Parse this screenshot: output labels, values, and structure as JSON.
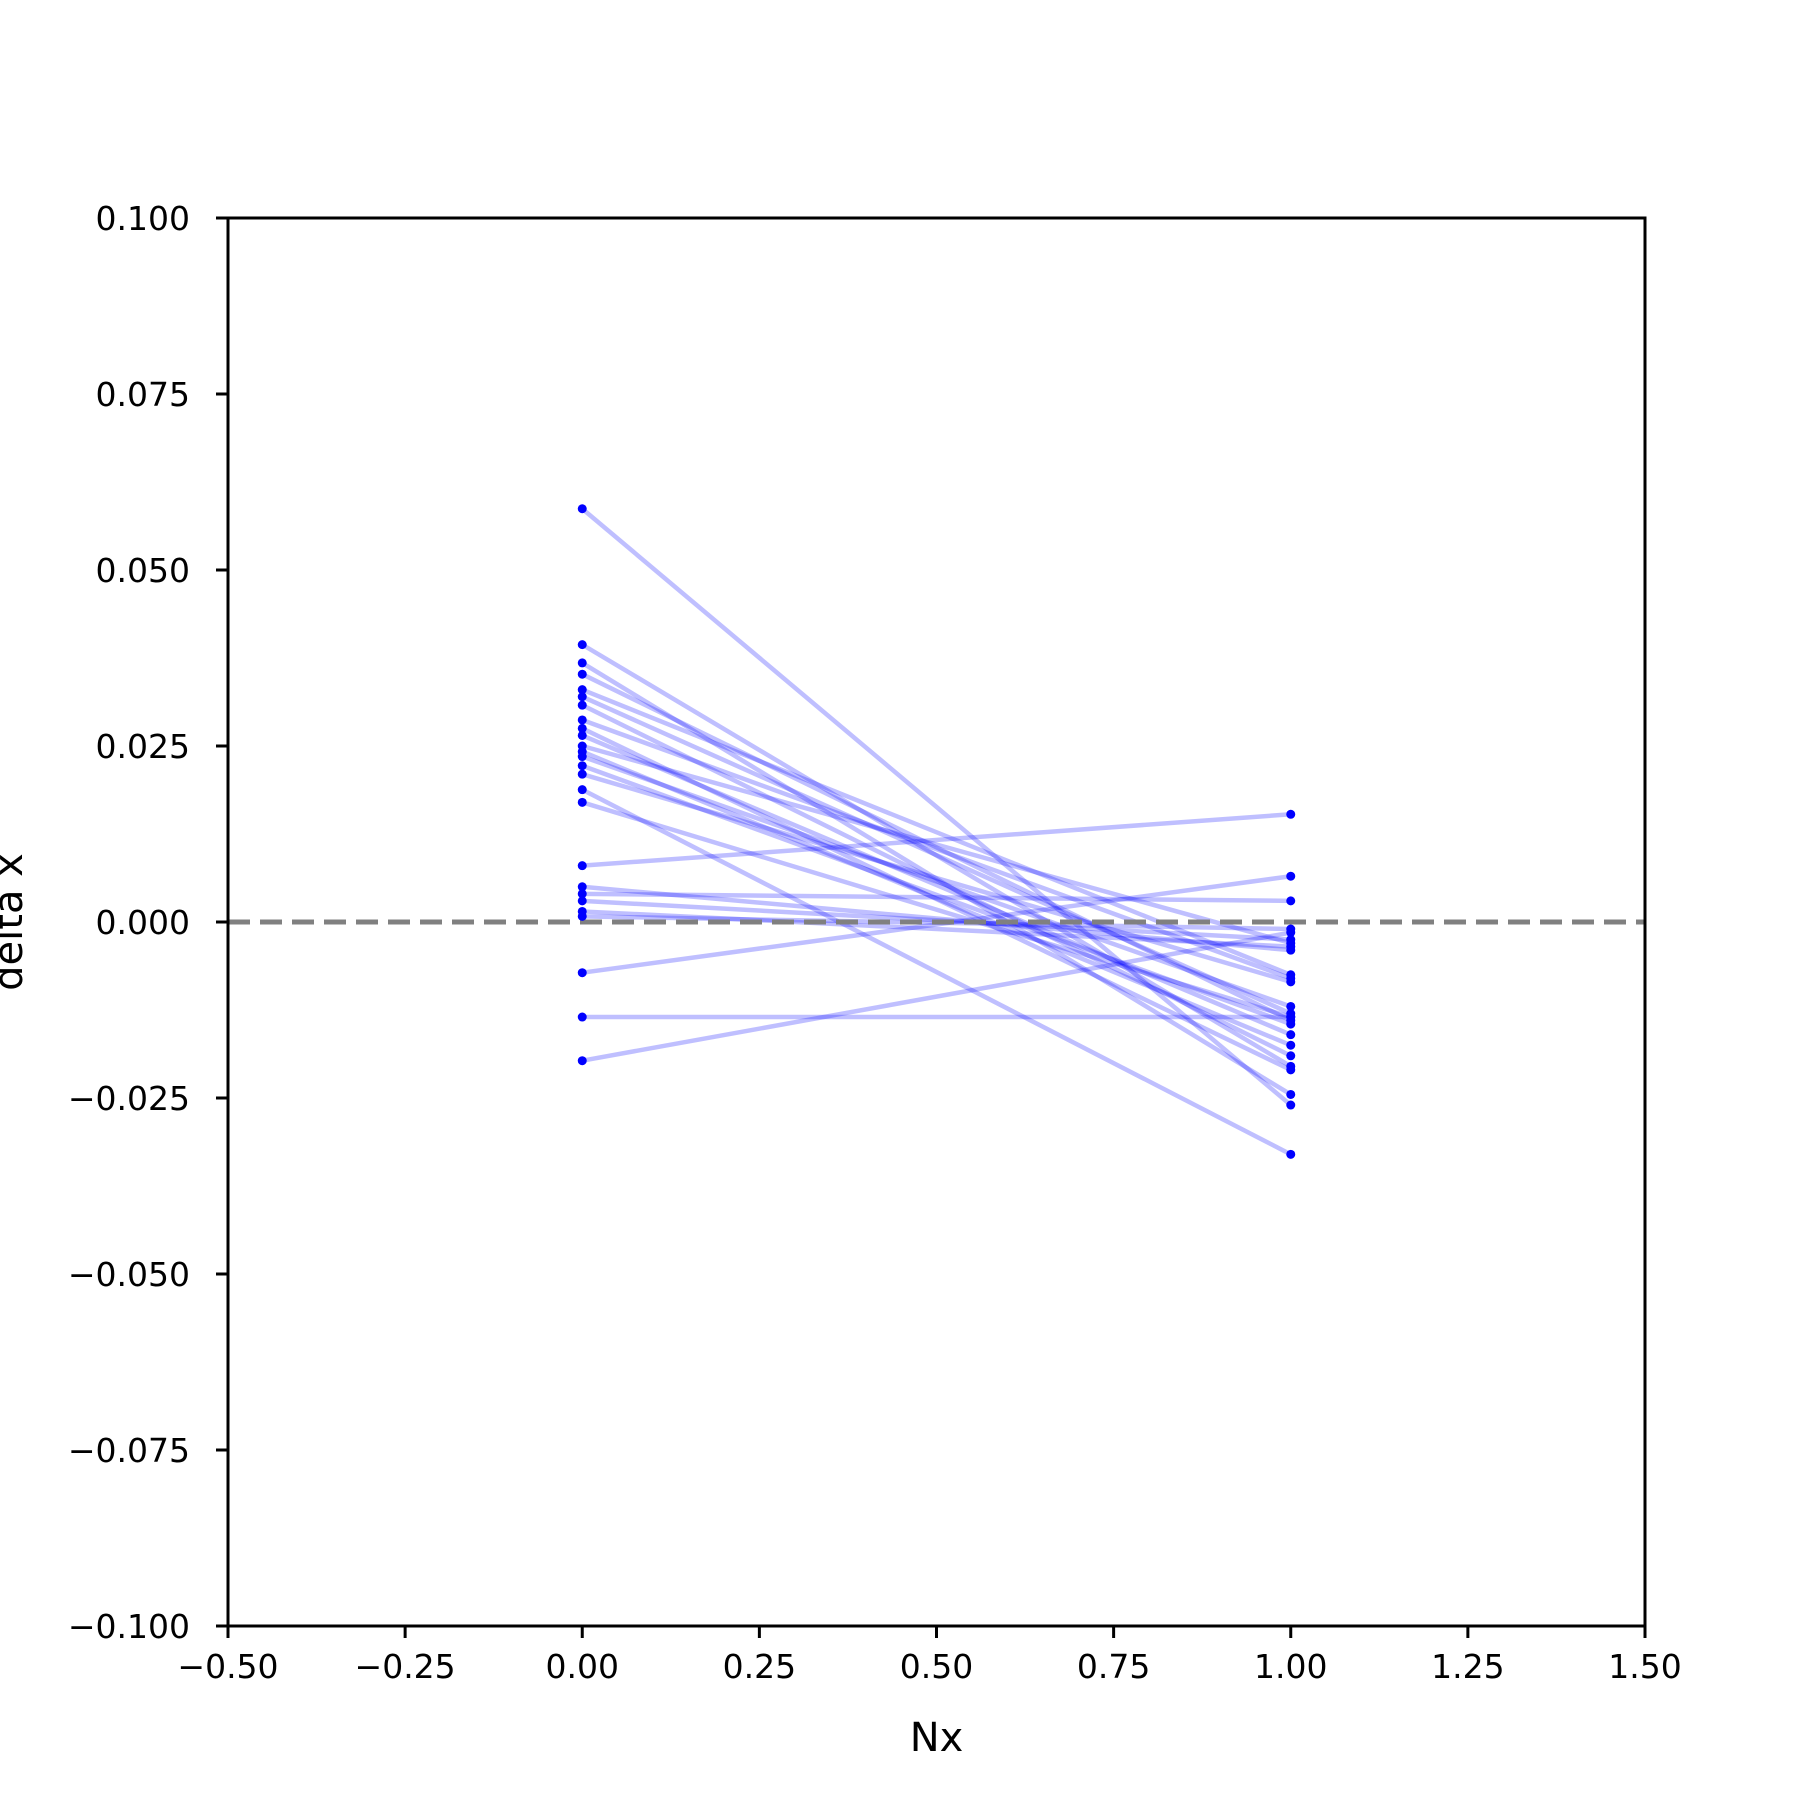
{
  "chart_data": {
    "type": "line",
    "title": "",
    "xlabel": "Nx",
    "ylabel": "delta x",
    "xlim": [
      -0.5,
      1.5
    ],
    "ylim": [
      -0.1,
      0.1
    ],
    "x_ticks": [
      "−0.50",
      "−0.25",
      "0.00",
      "0.25",
      "0.50",
      "0.75",
      "1.00",
      "1.25",
      "1.50"
    ],
    "y_ticks": [
      "−0.100",
      "−0.075",
      "−0.050",
      "−0.025",
      "0.000",
      "0.025",
      "0.050",
      "0.075",
      "0.100"
    ],
    "x_tick_values": [
      -0.5,
      -0.25,
      0,
      0.25,
      0.5,
      0.75,
      1.0,
      1.25,
      1.5
    ],
    "y_tick_values": [
      -0.1,
      -0.075,
      -0.05,
      -0.025,
      0,
      0.025,
      0.05,
      0.075,
      0.1
    ],
    "grid": false,
    "legend": "none",
    "reference_line": {
      "y": 0.0,
      "style": "dashed",
      "color": "#808080"
    },
    "series_color": "#0000ff",
    "x": [
      0,
      1
    ],
    "series": [
      {
        "values": [
          0.0587,
          -0.026
        ]
      },
      {
        "values": [
          0.0394,
          -0.0205
        ]
      },
      {
        "values": [
          0.0368,
          -0.0245
        ]
      },
      {
        "values": [
          0.0352,
          -0.014
        ]
      },
      {
        "values": [
          0.033,
          -0.0075
        ]
      },
      {
        "values": [
          0.032,
          -0.013
        ]
      },
      {
        "values": [
          0.0308,
          -0.019
        ]
      },
      {
        "values": [
          0.0287,
          -0.008
        ]
      },
      {
        "values": [
          0.0275,
          -0.021
        ]
      },
      {
        "values": [
          0.0265,
          -0.016
        ]
      },
      {
        "values": [
          0.025,
          -0.003
        ]
      },
      {
        "values": [
          0.0242,
          -0.0175
        ]
      },
      {
        "values": [
          0.0235,
          -0.012
        ]
      },
      {
        "values": [
          0.0222,
          -0.0145
        ]
      },
      {
        "values": [
          0.021,
          -0.0085
        ]
      },
      {
        "values": [
          0.0188,
          -0.033
        ]
      },
      {
        "values": [
          0.017,
          -0.0135
        ]
      },
      {
        "values": [
          0.008,
          0.0153
        ]
      },
      {
        "values": [
          0.005,
          -0.004
        ]
      },
      {
        "values": [
          0.004,
          0.003
        ]
      },
      {
        "values": [
          0.003,
          -0.0025
        ]
      },
      {
        "values": [
          0.0015,
          -0.0035
        ]
      },
      {
        "values": [
          0.0008,
          -0.001
        ]
      },
      {
        "values": [
          -0.0072,
          0.0065
        ]
      },
      {
        "values": [
          -0.0135,
          -0.0135
        ]
      },
      {
        "values": [
          -0.0197,
          -0.0015
        ]
      }
    ]
  }
}
